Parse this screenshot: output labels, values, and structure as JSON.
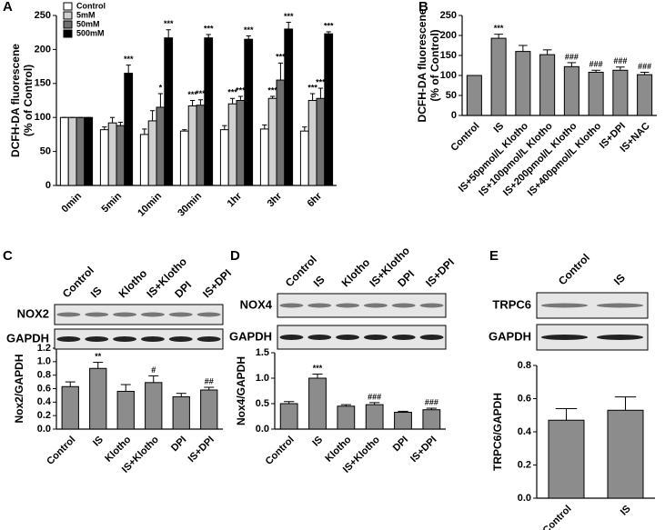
{
  "chart_data": [
    {
      "panel": "A",
      "type": "bar",
      "ylabel": [
        "DCFH-DA fluorescene",
        "(% of Control)"
      ],
      "categories": [
        "0min",
        "5min",
        "10min",
        "30min",
        "1hr",
        "3hr",
        "6hr"
      ],
      "series": [
        {
          "name": "Control",
          "color": "#ffffff",
          "values": [
            100,
            82,
            75,
            80,
            82,
            83,
            80
          ],
          "errors": [
            0,
            4,
            8,
            2,
            6,
            6,
            6
          ],
          "annotations": [
            null,
            null,
            null,
            null,
            null,
            null,
            null
          ]
        },
        {
          "name": "5mM",
          "color": "#d0d0d0",
          "values": [
            100,
            92,
            95,
            117,
            120,
            128,
            125
          ],
          "errors": [
            0,
            8,
            15,
            8,
            8,
            3,
            10
          ],
          "annotations": [
            null,
            null,
            null,
            "***",
            "***",
            "***",
            "***"
          ]
        },
        {
          "name": "50mM",
          "color": "#707070",
          "values": [
            100,
            88,
            115,
            118,
            125,
            155,
            128
          ],
          "errors": [
            0,
            5,
            20,
            8,
            6,
            25,
            15
          ],
          "annotations": [
            null,
            null,
            "*",
            "***",
            "***",
            "***",
            "***"
          ]
        },
        {
          "name": "500mM",
          "color": "#000000",
          "values": [
            100,
            165,
            217,
            217,
            215,
            230,
            223
          ],
          "errors": [
            0,
            12,
            12,
            5,
            5,
            10,
            3
          ],
          "annotations": [
            null,
            "***",
            "***",
            "***",
            "***",
            "***",
            "***"
          ]
        }
      ],
      "ylim": [
        0,
        250
      ],
      "yticks": [
        0,
        50,
        100,
        150,
        200,
        250
      ],
      "legend": "top-left"
    },
    {
      "panel": "B",
      "type": "bar",
      "ylabel": [
        "DCFH-DA fluorescene",
        "(% of Control)"
      ],
      "categories": [
        "Control",
        "IS",
        "IS+50pmol/L Klotho",
        "IS+100pmol/L Klotho",
        "IS+200pmol/L Klotho",
        "IS+400pmol/L Klotho",
        "IS+DPI",
        "IS+NAC"
      ],
      "values": [
        100,
        193,
        160,
        152,
        122,
        108,
        113,
        102
      ],
      "errors": [
        0,
        10,
        15,
        12,
        10,
        5,
        8,
        6
      ],
      "annotations": [
        null,
        "***",
        null,
        null,
        "###",
        "###",
        "###",
        "###"
      ],
      "color": "#8c8c8c",
      "ylim": [
        0,
        250
      ],
      "yticks": [
        0,
        50,
        100,
        150,
        200,
        250
      ]
    },
    {
      "panel": "C",
      "type": "bar",
      "blot": {
        "lanes": [
          "Control",
          "IS",
          "Klotho",
          "IS+Klotho",
          "DPI",
          "IS+DPI"
        ],
        "rows": [
          "NOX2",
          "GAPDH"
        ]
      },
      "ylabel": [
        "Nox2/GAPDH"
      ],
      "categories": [
        "Control",
        "IS",
        "Klotho",
        "IS+Klotho",
        "DPI",
        "IS+DPI"
      ],
      "values": [
        0.63,
        0.9,
        0.56,
        0.69,
        0.48,
        0.58
      ],
      "errors": [
        0.07,
        0.09,
        0.1,
        0.1,
        0.05,
        0.04
      ],
      "annotations": [
        null,
        "**",
        null,
        "#",
        null,
        "##"
      ],
      "color": "#8c8c8c",
      "ylim": [
        0,
        1.2
      ],
      "yticks": [
        {
          "value": 0,
          "label": "0.0"
        },
        0.2,
        0.4,
        0.6,
        0.8,
        {
          "value": 1,
          "label": "1.0"
        },
        1.2
      ]
    },
    {
      "panel": "D",
      "type": "bar",
      "blot": {
        "lanes": [
          "Control",
          "IS",
          "Klotho",
          "IS+Klotho",
          "DPI",
          "IS+DPI"
        ],
        "rows": [
          "NOX4",
          "GAPDH"
        ]
      },
      "ylabel": [
        "Nox4/GAPDH"
      ],
      "categories": [
        "Control",
        "IS",
        "Klotho",
        "IS+Klotho",
        "DPI",
        "IS+DPI"
      ],
      "values": [
        0.5,
        1.0,
        0.45,
        0.48,
        0.33,
        0.38
      ],
      "errors": [
        0.04,
        0.08,
        0.03,
        0.04,
        0.02,
        0.03
      ],
      "annotations": [
        null,
        "***",
        null,
        "###",
        null,
        "###"
      ],
      "color": "#8c8c8c",
      "ylim": [
        0,
        1.5
      ],
      "yticks": [
        {
          "value": 0,
          "label": "0.0"
        },
        0.5,
        {
          "value": 1,
          "label": "1.0"
        },
        1.5
      ]
    },
    {
      "panel": "E",
      "type": "bar",
      "blot": {
        "lanes": [
          "Control",
          "IS"
        ],
        "rows": [
          "TRPC6",
          "GAPDH"
        ]
      },
      "ylabel": [
        "TRPC6/GAPDH"
      ],
      "categories": [
        "Control",
        "IS"
      ],
      "values": [
        0.47,
        0.53
      ],
      "errors": [
        0.07,
        0.08
      ],
      "color": "#8c8c8c",
      "ylim": [
        0,
        0.8
      ],
      "yticks": [
        {
          "value": 0,
          "label": "0.0"
        },
        0.2,
        0.4,
        0.6,
        0.8
      ]
    }
  ]
}
